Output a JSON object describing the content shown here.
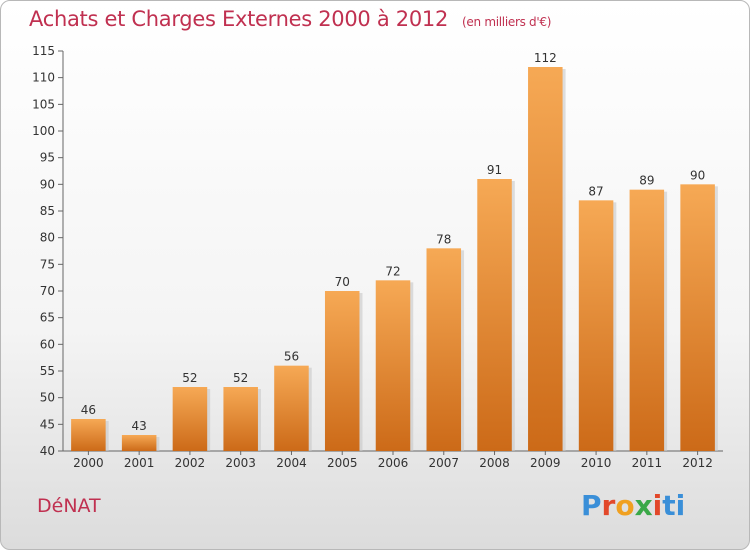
{
  "header": {
    "title": "Achats et Charges Externes 2000 à 2012",
    "unit": "(en milliers d'€)"
  },
  "commune": "DéNAT",
  "logo": {
    "letters": [
      "P",
      "r",
      "o",
      "x",
      "i",
      "ti"
    ]
  },
  "colors": {
    "bar_top": "#f6a955",
    "bar_bottom": "#cc6a18",
    "title": "#c03050"
  },
  "chart_data": {
    "type": "bar",
    "title": "Achats et Charges Externes 2000 à 2012",
    "xlabel": "",
    "ylabel": "",
    "categories": [
      "2000",
      "2001",
      "2002",
      "2003",
      "2004",
      "2005",
      "2006",
      "2007",
      "2008",
      "2009",
      "2010",
      "2011",
      "2012"
    ],
    "values": [
      46,
      43,
      52,
      52,
      56,
      70,
      72,
      78,
      91,
      112,
      87,
      89,
      90
    ],
    "ylim": [
      40,
      115
    ],
    "yticks": [
      40,
      45,
      50,
      55,
      60,
      65,
      70,
      75,
      80,
      85,
      90,
      95,
      100,
      105,
      110,
      115
    ],
    "grid": false,
    "legend": "none"
  }
}
